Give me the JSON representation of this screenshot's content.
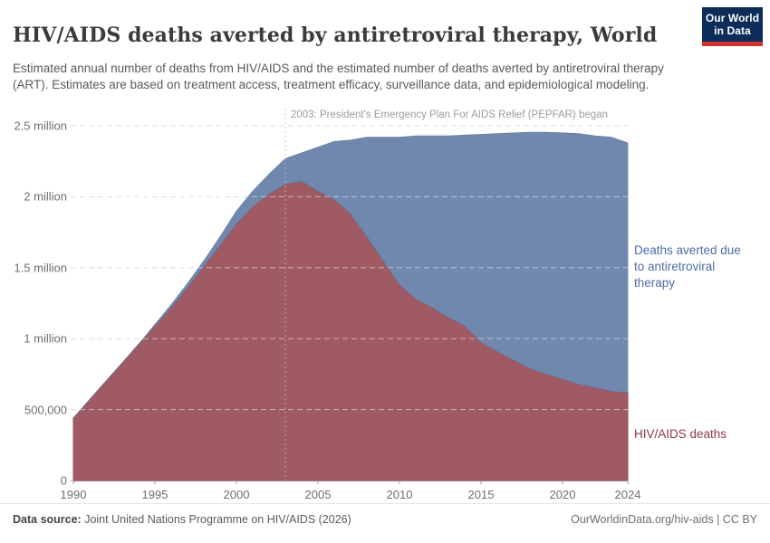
{
  "header": {
    "title": "HIV/AIDS deaths averted by antiretroviral therapy, World",
    "subtitle": "Estimated annual number of deaths from HIV/AIDS and the estimated number of deaths averted by antiretroviral therapy (ART). Estimates are based on treatment access, treatment efficacy, surveillance data, and epidemiological modeling.",
    "logo": {
      "line1": "Our World",
      "line2": "in Data",
      "bg_color": "#0c2d5a",
      "bar_color": "#d1342e"
    }
  },
  "chart_data": {
    "type": "area",
    "stacked": true,
    "title": "HIV/AIDS deaths averted by antiretroviral therapy, World",
    "xlabel": "",
    "ylabel": "",
    "ylim": [
      0,
      2500000
    ],
    "grid": "dashed-horizontal",
    "legend_position": "right-edge-labels",
    "x": [
      1990,
      1991,
      1992,
      1993,
      1994,
      1995,
      1996,
      1997,
      1998,
      1999,
      2000,
      2001,
      2002,
      2003,
      2004,
      2005,
      2006,
      2007,
      2008,
      2009,
      2010,
      2011,
      2012,
      2013,
      2014,
      2015,
      2016,
      2017,
      2018,
      2019,
      2020,
      2021,
      2022,
      2023,
      2024
    ],
    "series": [
      {
        "name": "HIV/AIDS deaths",
        "color": "#a05a64",
        "edge_color": "#91505b",
        "label_color": "#8d3a48",
        "values": [
          440000,
          570000,
          700000,
          830000,
          960000,
          1090000,
          1220000,
          1360000,
          1510000,
          1660000,
          1810000,
          1930000,
          2020000,
          2090000,
          2110000,
          2040000,
          1980000,
          1880000,
          1720000,
          1550000,
          1380000,
          1280000,
          1220000,
          1150000,
          1090000,
          975000,
          910000,
          850000,
          790000,
          750000,
          715000,
          680000,
          655000,
          630000,
          620000
        ]
      },
      {
        "name": "Deaths averted due to antiretroviral therapy",
        "color": "#7088ae",
        "edge_color": "#63799e",
        "label_color": "#4c6da6",
        "values": [
          0,
          0,
          0,
          0,
          0,
          10000,
          20000,
          30000,
          40000,
          60000,
          90000,
          110000,
          140000,
          180000,
          200000,
          310000,
          410000,
          520000,
          700000,
          870000,
          1040000,
          1150000,
          1210000,
          1280000,
          1345000,
          1465000,
          1535000,
          1600000,
          1665000,
          1705000,
          1735000,
          1765000,
          1775000,
          1790000,
          1760000
        ]
      }
    ],
    "yticks": [
      {
        "value": 0,
        "label": "0"
      },
      {
        "value": 500000,
        "label": "500,000"
      },
      {
        "value": 1000000,
        "label": "1 million"
      },
      {
        "value": 1500000,
        "label": "1.5 million"
      },
      {
        "value": 2000000,
        "label": "2 million"
      },
      {
        "value": 2500000,
        "label": "2.5 million"
      }
    ],
    "xticks": [
      {
        "value": 1990,
        "label": "1990"
      },
      {
        "value": 1995,
        "label": "1995"
      },
      {
        "value": 2000,
        "label": "2000"
      },
      {
        "value": 2005,
        "label": "2005"
      },
      {
        "value": 2010,
        "label": "2010"
      },
      {
        "value": 2015,
        "label": "2015"
      },
      {
        "value": 2020,
        "label": "2020"
      },
      {
        "value": 2024,
        "label": "2024"
      }
    ],
    "annotation": {
      "year": 2003,
      "text": "2003: President's Emergency Plan For AIDS Relief (PEPFAR) began"
    }
  },
  "footer": {
    "source_label": "Data source:",
    "source_text": " Joint United Nations Programme on HIV/AIDS (2026)",
    "credit": "OurWorldinData.org/hiv-aids | CC BY"
  }
}
